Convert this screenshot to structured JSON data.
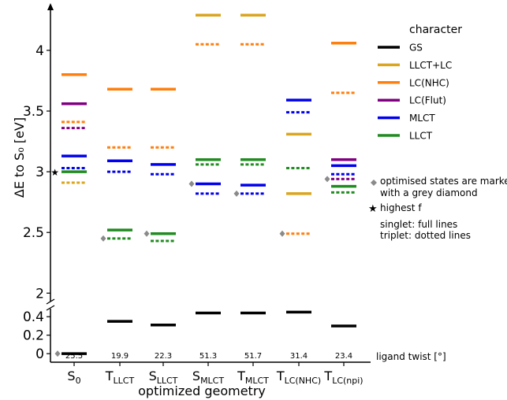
{
  "chart_data": {
    "type": "level-diagram",
    "ylabel": "ΔE to S₀ [eV]",
    "xlabel": "optimized geometry",
    "y_upper_ticks": [
      2,
      2.5,
      3,
      3.5,
      4
    ],
    "y_lower_ticks": [
      0,
      0.2,
      0.4
    ],
    "y_upper_range": [
      1.95,
      4.35
    ],
    "y_lower_range": [
      -0.05,
      0.47
    ],
    "categories": [
      {
        "main": "S",
        "sub": "0",
        "twist": "25.5"
      },
      {
        "main": "T",
        "sub": "LLCT",
        "twist": "19.9"
      },
      {
        "main": "S",
        "sub": "LLCT",
        "twist": "22.3"
      },
      {
        "main": "S",
        "sub": "MLCT",
        "twist": "51.3"
      },
      {
        "main": "T",
        "sub": "MLCT",
        "twist": "51.7"
      },
      {
        "main": "T",
        "sub": "LC(NHC)",
        "twist": "31.4"
      },
      {
        "main": "T",
        "sub": "LC(npi)",
        "twist": "23.4"
      }
    ],
    "twist_label": "ligand twist [°]",
    "legend": {
      "title": "character",
      "items": [
        {
          "key": "GS",
          "label": "GS",
          "color": "#000000"
        },
        {
          "key": "LLCT+LC",
          "label": "LLCT+LC",
          "color": "#DAA520"
        },
        {
          "key": "LC(NHC)",
          "label": "LC(NHC)",
          "color": "#FF7F0E"
        },
        {
          "key": "LC(Flut)",
          "label": "LC(Flut)",
          "color": "#800080"
        },
        {
          "key": "MLCT",
          "label": "MLCT",
          "color": "#0000EE"
        },
        {
          "key": "LLCT",
          "label": "LLCT",
          "color": "#228B22"
        }
      ]
    },
    "notes": {
      "optimised_line1": "optimised states are marked",
      "optimised_line2": "with a grey diamond",
      "highest_f": "highest f",
      "singlet": "singlet: full lines",
      "triplet": "triplet: dotted lines"
    },
    "levels": [
      {
        "col": 0,
        "e": 3.8,
        "c": "LC(NHC)",
        "t": "singlet"
      },
      {
        "col": 0,
        "e": 3.56,
        "c": "LC(Flut)",
        "t": "singlet"
      },
      {
        "col": 0,
        "e": 3.41,
        "c": "LC(NHC)",
        "t": "triplet"
      },
      {
        "col": 0,
        "e": 3.36,
        "c": "LC(Flut)",
        "t": "triplet"
      },
      {
        "col": 0,
        "e": 3.13,
        "c": "MLCT",
        "t": "singlet"
      },
      {
        "col": 0,
        "e": 3.03,
        "c": "MLCT",
        "t": "triplet"
      },
      {
        "col": 0,
        "e": 3.0,
        "c": "LLCT",
        "t": "singlet",
        "star": true
      },
      {
        "col": 0,
        "e": 2.91,
        "c": "LLCT+LC",
        "t": "triplet"
      },
      {
        "col": 0,
        "e": 0.0,
        "c": "GS",
        "t": "singlet",
        "diamond": true
      },
      {
        "col": 1,
        "e": 3.68,
        "c": "LC(NHC)",
        "t": "singlet"
      },
      {
        "col": 1,
        "e": 3.2,
        "c": "LC(NHC)",
        "t": "triplet"
      },
      {
        "col": 1,
        "e": 3.09,
        "c": "MLCT",
        "t": "singlet"
      },
      {
        "col": 1,
        "e": 3.0,
        "c": "MLCT",
        "t": "triplet"
      },
      {
        "col": 1,
        "e": 2.52,
        "c": "LLCT",
        "t": "singlet"
      },
      {
        "col": 1,
        "e": 2.45,
        "c": "LLCT",
        "t": "triplet",
        "diamond": true
      },
      {
        "col": 1,
        "e": 0.35,
        "c": "GS",
        "t": "singlet"
      },
      {
        "col": 2,
        "e": 3.68,
        "c": "LC(NHC)",
        "t": "singlet"
      },
      {
        "col": 2,
        "e": 3.2,
        "c": "LC(NHC)",
        "t": "triplet"
      },
      {
        "col": 2,
        "e": 3.06,
        "c": "MLCT",
        "t": "singlet"
      },
      {
        "col": 2,
        "e": 2.98,
        "c": "MLCT",
        "t": "triplet"
      },
      {
        "col": 2,
        "e": 2.49,
        "c": "LLCT",
        "t": "singlet",
        "diamond": true
      },
      {
        "col": 2,
        "e": 2.43,
        "c": "LLCT",
        "t": "triplet"
      },
      {
        "col": 2,
        "e": 0.31,
        "c": "GS",
        "t": "singlet"
      },
      {
        "col": 3,
        "e": 4.29,
        "c": "LLCT+LC",
        "t": "singlet"
      },
      {
        "col": 3,
        "e": 4.05,
        "c": "LC(NHC)",
        "t": "triplet"
      },
      {
        "col": 3,
        "e": 3.1,
        "c": "LLCT",
        "t": "singlet"
      },
      {
        "col": 3,
        "e": 3.06,
        "c": "LLCT",
        "t": "triplet"
      },
      {
        "col": 3,
        "e": 2.9,
        "c": "MLCT",
        "t": "singlet",
        "diamond": true
      },
      {
        "col": 3,
        "e": 2.82,
        "c": "MLCT",
        "t": "triplet"
      },
      {
        "col": 3,
        "e": 0.44,
        "c": "GS",
        "t": "singlet"
      },
      {
        "col": 4,
        "e": 4.29,
        "c": "LLCT+LC",
        "t": "singlet"
      },
      {
        "col": 4,
        "e": 4.05,
        "c": "LC(NHC)",
        "t": "triplet"
      },
      {
        "col": 4,
        "e": 3.1,
        "c": "LLCT",
        "t": "singlet"
      },
      {
        "col": 4,
        "e": 3.06,
        "c": "LLCT",
        "t": "triplet"
      },
      {
        "col": 4,
        "e": 2.89,
        "c": "MLCT",
        "t": "singlet"
      },
      {
        "col": 4,
        "e": 2.82,
        "c": "MLCT",
        "t": "triplet",
        "diamond": true
      },
      {
        "col": 4,
        "e": 0.44,
        "c": "GS",
        "t": "singlet"
      },
      {
        "col": 5,
        "e": 3.59,
        "c": "MLCT",
        "t": "singlet"
      },
      {
        "col": 5,
        "e": 3.49,
        "c": "MLCT",
        "t": "triplet"
      },
      {
        "col": 5,
        "e": 3.31,
        "c": "LLCT+LC",
        "t": "singlet"
      },
      {
        "col": 5,
        "e": 3.03,
        "c": "LLCT",
        "t": "triplet"
      },
      {
        "col": 5,
        "e": 2.82,
        "c": "LLCT+LC",
        "t": "singlet"
      },
      {
        "col": 5,
        "e": 2.49,
        "c": "LC(NHC)",
        "t": "triplet",
        "diamond": true
      },
      {
        "col": 5,
        "e": 0.45,
        "c": "GS",
        "t": "singlet"
      },
      {
        "col": 6,
        "e": 4.06,
        "c": "LC(NHC)",
        "t": "singlet"
      },
      {
        "col": 6,
        "e": 3.65,
        "c": "LC(NHC)",
        "t": "triplet"
      },
      {
        "col": 6,
        "e": 3.1,
        "c": "LC(Flut)",
        "t": "singlet"
      },
      {
        "col": 6,
        "e": 3.05,
        "c": "MLCT",
        "t": "singlet"
      },
      {
        "col": 6,
        "e": 2.98,
        "c": "MLCT",
        "t": "triplet"
      },
      {
        "col": 6,
        "e": 2.94,
        "c": "LC(Flut)",
        "t": "triplet",
        "diamond": true
      },
      {
        "col": 6,
        "e": 2.88,
        "c": "LLCT",
        "t": "singlet"
      },
      {
        "col": 6,
        "e": 2.83,
        "c": "LLCT",
        "t": "triplet"
      },
      {
        "col": 6,
        "e": 0.3,
        "c": "GS",
        "t": "singlet"
      }
    ]
  }
}
